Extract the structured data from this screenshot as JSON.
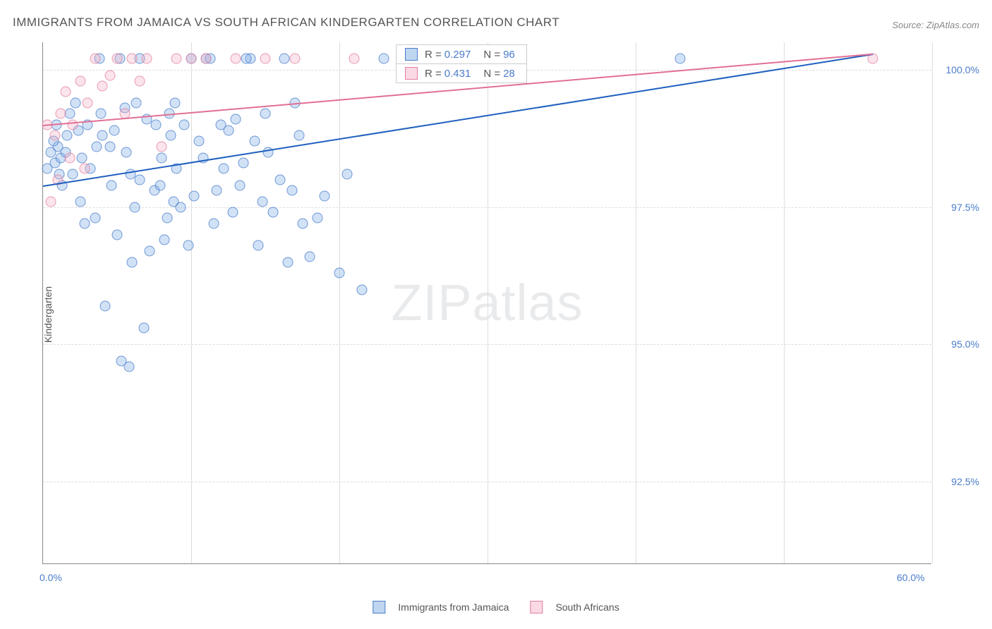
{
  "title": "IMMIGRANTS FROM JAMAICA VS SOUTH AFRICAN KINDERGARTEN CORRELATION CHART",
  "source_label": "Source: ZipAtlas.com",
  "y_axis_title": "Kindergarten",
  "watermark_bold": "ZIP",
  "watermark_light": "atlas",
  "chart": {
    "type": "scatter",
    "xlim": [
      0,
      60
    ],
    "ylim": [
      91,
      100.5
    ],
    "x_ticks": [
      {
        "pos": 0,
        "label": "0.0%"
      },
      {
        "pos": 60,
        "label": "60.0%"
      }
    ],
    "x_grid_positions": [
      10,
      20,
      30,
      40,
      50,
      60
    ],
    "y_ticks": [
      {
        "pos": 100,
        "label": "100.0%"
      },
      {
        "pos": 97.5,
        "label": "97.5%"
      },
      {
        "pos": 95,
        "label": "95.0%"
      },
      {
        "pos": 92.5,
        "label": "92.5%"
      }
    ],
    "series": [
      {
        "name": "Immigrants from Jamaica",
        "color_fill": "rgba(127,173,228,0.35)",
        "color_stroke": "#4a7cc9",
        "css_class": "blue",
        "r_value": "0.297",
        "n_value": "96",
        "trend": {
          "x1": 0,
          "y1": 97.9,
          "x2": 56,
          "y2": 100.3,
          "color": "#1f5fbf"
        },
        "points": [
          [
            0.5,
            98.5
          ],
          [
            0.8,
            98.3
          ],
          [
            1.0,
            98.6
          ],
          [
            1.2,
            98.4
          ],
          [
            1.5,
            98.5
          ],
          [
            0.7,
            98.7
          ],
          [
            1.8,
            99.2
          ],
          [
            2.0,
            98.1
          ],
          [
            2.5,
            97.6
          ],
          [
            3.0,
            99.0
          ],
          [
            3.5,
            97.3
          ],
          [
            4.0,
            98.8
          ],
          [
            4.5,
            98.6
          ],
          [
            5.0,
            97.0
          ],
          [
            5.5,
            99.3
          ],
          [
            6.0,
            96.5
          ],
          [
            6.5,
            98.0
          ],
          [
            7.0,
            99.1
          ],
          [
            7.5,
            97.8
          ],
          [
            8.0,
            98.4
          ],
          [
            8.5,
            99.2
          ],
          [
            8.8,
            97.6
          ],
          [
            4.2,
            95.7
          ],
          [
            5.3,
            94.7
          ],
          [
            5.8,
            94.6
          ],
          [
            9.0,
            98.2
          ],
          [
            9.5,
            99.0
          ],
          [
            10.0,
            100.2
          ],
          [
            10.5,
            98.7
          ],
          [
            11.0,
            100.2
          ],
          [
            11.5,
            97.2
          ],
          [
            12.0,
            99.0
          ],
          [
            12.5,
            98.9
          ],
          [
            13.0,
            99.1
          ],
          [
            13.5,
            98.3
          ],
          [
            14.0,
            100.2
          ],
          [
            14.5,
            96.8
          ],
          [
            15.0,
            99.2
          ],
          [
            15.5,
            97.4
          ],
          [
            16.0,
            98.0
          ],
          [
            16.5,
            96.5
          ],
          [
            17.0,
            99.4
          ],
          [
            17.5,
            97.2
          ],
          [
            18.0,
            96.6
          ],
          [
            18.5,
            97.3
          ],
          [
            4.8,
            98.9
          ],
          [
            6.2,
            97.5
          ],
          [
            7.2,
            96.7
          ],
          [
            8.2,
            96.9
          ],
          [
            9.3,
            97.5
          ],
          [
            10.2,
            97.7
          ],
          [
            11.3,
            100.2
          ],
          [
            12.2,
            98.2
          ],
          [
            13.3,
            97.9
          ],
          [
            14.3,
            98.7
          ],
          [
            2.2,
            99.4
          ],
          [
            3.2,
            98.2
          ],
          [
            1.3,
            97.9
          ],
          [
            0.3,
            98.2
          ],
          [
            1.6,
            98.8
          ],
          [
            20.0,
            96.3
          ],
          [
            21.5,
            96.0
          ],
          [
            23.0,
            100.2
          ],
          [
            20.5,
            98.1
          ],
          [
            43.0,
            100.2
          ],
          [
            5.2,
            100.2
          ],
          [
            6.5,
            100.2
          ],
          [
            16.3,
            100.2
          ],
          [
            3.8,
            100.2
          ],
          [
            6.8,
            95.3
          ],
          [
            2.8,
            97.2
          ],
          [
            4.6,
            97.9
          ],
          [
            5.6,
            98.5
          ],
          [
            7.6,
            99.0
          ],
          [
            8.6,
            98.8
          ],
          [
            0.9,
            99.0
          ],
          [
            1.1,
            98.1
          ],
          [
            2.4,
            98.9
          ],
          [
            3.6,
            98.6
          ],
          [
            6.3,
            99.4
          ],
          [
            8.9,
            99.4
          ],
          [
            11.7,
            97.8
          ],
          [
            13.7,
            100.2
          ],
          [
            15.2,
            98.5
          ],
          [
            16.8,
            97.8
          ],
          [
            17.3,
            98.8
          ],
          [
            8.4,
            97.3
          ],
          [
            9.8,
            96.8
          ],
          [
            10.8,
            98.4
          ],
          [
            12.8,
            97.4
          ],
          [
            2.6,
            98.4
          ],
          [
            3.9,
            99.2
          ],
          [
            5.9,
            98.1
          ],
          [
            7.9,
            97.9
          ],
          [
            14.8,
            97.6
          ],
          [
            19.0,
            97.7
          ]
        ]
      },
      {
        "name": "South Africans",
        "color_fill": "rgba(244,179,199,0.35)",
        "color_stroke": "#e2809e",
        "css_class": "pink",
        "r_value": "0.431",
        "n_value": "28",
        "trend": {
          "x1": 0,
          "y1": 99.0,
          "x2": 56,
          "y2": 100.3,
          "color": "#e26f93"
        },
        "points": [
          [
            0.3,
            99.0
          ],
          [
            0.8,
            98.8
          ],
          [
            1.2,
            99.2
          ],
          [
            1.5,
            99.6
          ],
          [
            2.0,
            99.0
          ],
          [
            2.5,
            99.8
          ],
          [
            3.0,
            99.4
          ],
          [
            3.5,
            100.2
          ],
          [
            4.0,
            99.7
          ],
          [
            4.5,
            99.9
          ],
          [
            5.0,
            100.2
          ],
          [
            5.5,
            99.2
          ],
          [
            6.0,
            100.2
          ],
          [
            6.5,
            99.8
          ],
          [
            7.0,
            100.2
          ],
          [
            8.0,
            98.6
          ],
          [
            9.0,
            100.2
          ],
          [
            10.0,
            100.2
          ],
          [
            11.0,
            100.2
          ],
          [
            13.0,
            100.2
          ],
          [
            15.0,
            100.2
          ],
          [
            17.0,
            100.2
          ],
          [
            21.0,
            100.2
          ],
          [
            1.8,
            98.4
          ],
          [
            2.8,
            98.2
          ],
          [
            0.5,
            97.6
          ],
          [
            1.0,
            98.0
          ],
          [
            56.0,
            100.2
          ]
        ]
      }
    ]
  },
  "legend": {
    "r_label": "R =",
    "n_label": "N ="
  },
  "colors": {
    "title_color": "#555555",
    "axis_label_color": "#4a7cc9",
    "grid_color": "#dddddd",
    "background": "#ffffff"
  }
}
